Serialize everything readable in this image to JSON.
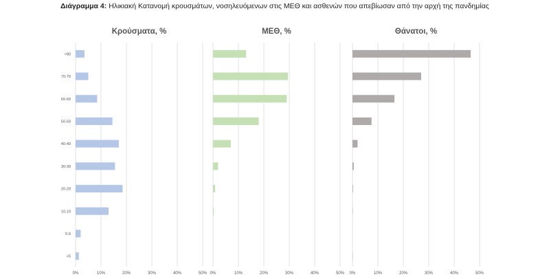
{
  "caption": {
    "label": "Διάγραμμα 4:",
    "text": "Ηλικιακή Κατανομή κρουσμάτων, νοσηλευόμενων στις ΜΕΘ και ασθενών που απεβίωσαν από την αρχή της πανδημίας"
  },
  "chart_data": {
    "type": "bar",
    "orientation": "horizontal",
    "categories": [
      ">80",
      "70-79",
      "60-69",
      "50-59",
      "40-49",
      "30-39",
      "20-29",
      "10-19",
      "5-9",
      "<5"
    ],
    "xlim": [
      0,
      50
    ],
    "xticks": [
      "0%",
      "10%",
      "20%",
      "30%",
      "40%",
      "50%"
    ],
    "grid": "vertical",
    "panels": [
      {
        "title": "Κρούσματα, %",
        "color": "#b4c7e7",
        "values": [
          3.5,
          5.0,
          8.5,
          14.5,
          17.0,
          15.5,
          18.5,
          13.0,
          2.0,
          1.3
        ]
      },
      {
        "title": "ΜΕΘ, %",
        "color": "#c5e0b4",
        "values": [
          13.0,
          29.5,
          29.0,
          18.0,
          7.0,
          2.0,
          0.8,
          0.3,
          0.0,
          0.0
        ]
      },
      {
        "title": "Θάνατοι, %",
        "color": "#aeaaaa",
        "values": [
          46.5,
          27.0,
          16.5,
          7.5,
          2.0,
          0.5,
          0.2,
          0.1,
          0.0,
          0.1
        ]
      }
    ]
  }
}
